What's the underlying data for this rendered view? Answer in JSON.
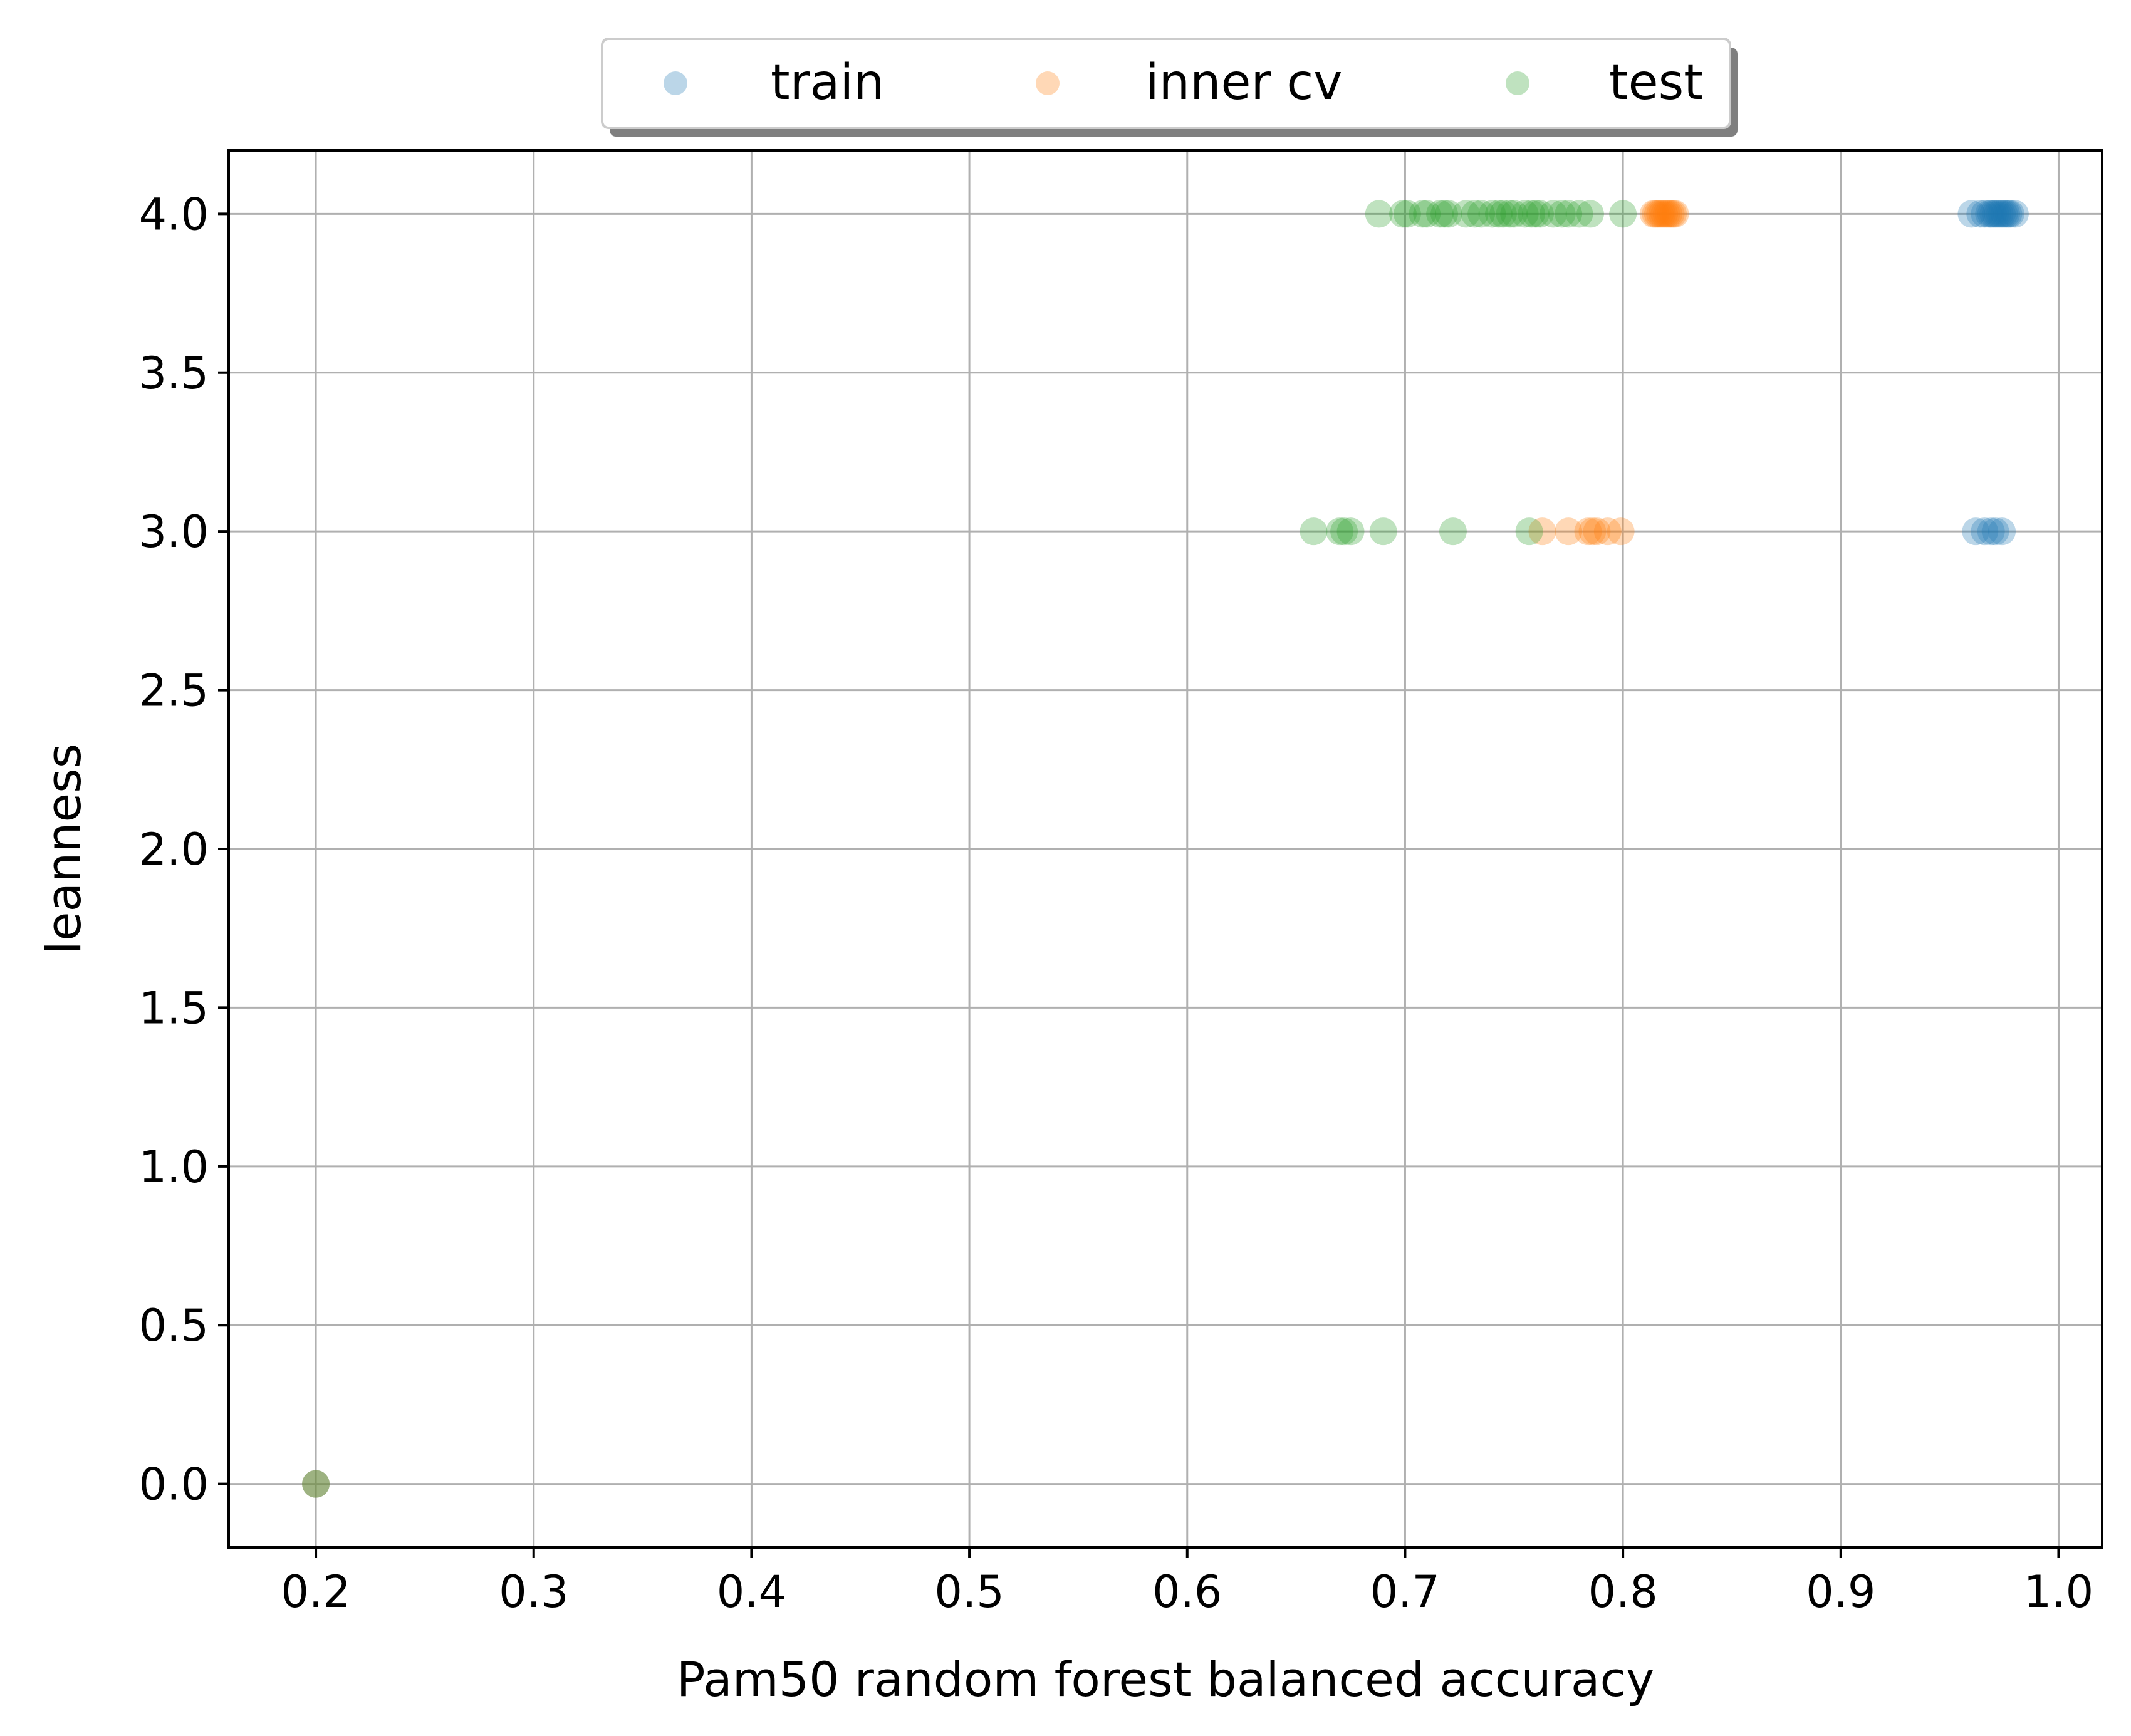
{
  "chart_data": {
    "type": "scatter",
    "title": "",
    "xlabel": "Pam50 random forest balanced accuracy",
    "ylabel": "leanness",
    "xlim": [
      0.16,
      1.02
    ],
    "ylim": [
      -0.2,
      4.2
    ],
    "xticks": [
      "0.2",
      "0.3",
      "0.4",
      "0.5",
      "0.6",
      "0.7",
      "0.8",
      "0.9",
      "1.0"
    ],
    "yticks": [
      "0.0",
      "0.5",
      "1.0",
      "1.5",
      "2.0",
      "2.5",
      "3.0",
      "3.5",
      "4.0"
    ],
    "xtick_values": [
      0.2,
      0.3,
      0.4,
      0.5,
      0.6,
      0.7,
      0.8,
      0.9,
      1.0
    ],
    "ytick_values": [
      0.0,
      0.5,
      1.0,
      1.5,
      2.0,
      2.5,
      3.0,
      3.5,
      4.0
    ],
    "grid": true,
    "legend_position": "top-center, above the plot, three columns",
    "series": [
      {
        "name": "train",
        "color": "#1f77b4",
        "points": [
          [
            0.2,
            0.0
          ],
          [
            0.96,
            4.0
          ],
          [
            0.964,
            4.0
          ],
          [
            0.966,
            4.0
          ],
          [
            0.968,
            4.0
          ],
          [
            0.969,
            4.0
          ],
          [
            0.97,
            4.0
          ],
          [
            0.971,
            4.0
          ],
          [
            0.972,
            4.0
          ],
          [
            0.973,
            4.0
          ],
          [
            0.974,
            4.0
          ],
          [
            0.975,
            4.0
          ],
          [
            0.976,
            4.0
          ],
          [
            0.977,
            4.0
          ],
          [
            0.978,
            4.0
          ],
          [
            0.98,
            4.0
          ],
          [
            0.962,
            3.0
          ],
          [
            0.966,
            3.0
          ],
          [
            0.969,
            3.0
          ],
          [
            0.971,
            3.0
          ],
          [
            0.974,
            3.0
          ]
        ]
      },
      {
        "name": "inner cv",
        "color": "#ff7f0e",
        "points": [
          [
            0.2,
            0.0
          ],
          [
            0.814,
            4.0
          ],
          [
            0.815,
            4.0
          ],
          [
            0.816,
            4.0
          ],
          [
            0.817,
            4.0
          ],
          [
            0.818,
            4.0
          ],
          [
            0.819,
            4.0
          ],
          [
            0.82,
            4.0
          ],
          [
            0.821,
            4.0
          ],
          [
            0.822,
            4.0
          ],
          [
            0.823,
            4.0
          ],
          [
            0.824,
            4.0
          ],
          [
            0.763,
            3.0
          ],
          [
            0.775,
            3.0
          ],
          [
            0.784,
            3.0
          ],
          [
            0.786,
            3.0
          ],
          [
            0.788,
            3.0
          ],
          [
            0.793,
            3.0
          ],
          [
            0.799,
            3.0
          ]
        ]
      },
      {
        "name": "test",
        "color": "#2ca02c",
        "points": [
          [
            0.2,
            0.0
          ],
          [
            0.688,
            4.0
          ],
          [
            0.699,
            4.0
          ],
          [
            0.701,
            4.0
          ],
          [
            0.708,
            4.0
          ],
          [
            0.71,
            4.0
          ],
          [
            0.716,
            4.0
          ],
          [
            0.718,
            4.0
          ],
          [
            0.72,
            4.0
          ],
          [
            0.728,
            4.0
          ],
          [
            0.732,
            4.0
          ],
          [
            0.735,
            4.0
          ],
          [
            0.74,
            4.0
          ],
          [
            0.743,
            4.0
          ],
          [
            0.745,
            4.0
          ],
          [
            0.748,
            4.0
          ],
          [
            0.75,
            4.0
          ],
          [
            0.755,
            4.0
          ],
          [
            0.758,
            4.0
          ],
          [
            0.76,
            4.0
          ],
          [
            0.762,
            4.0
          ],
          [
            0.768,
            4.0
          ],
          [
            0.772,
            4.0
          ],
          [
            0.775,
            4.0
          ],
          [
            0.78,
            4.0
          ],
          [
            0.785,
            4.0
          ],
          [
            0.8,
            4.0
          ],
          [
            0.658,
            3.0
          ],
          [
            0.67,
            3.0
          ],
          [
            0.672,
            3.0
          ],
          [
            0.675,
            3.0
          ],
          [
            0.69,
            3.0
          ],
          [
            0.722,
            3.0
          ],
          [
            0.757,
            3.0
          ]
        ]
      }
    ]
  }
}
